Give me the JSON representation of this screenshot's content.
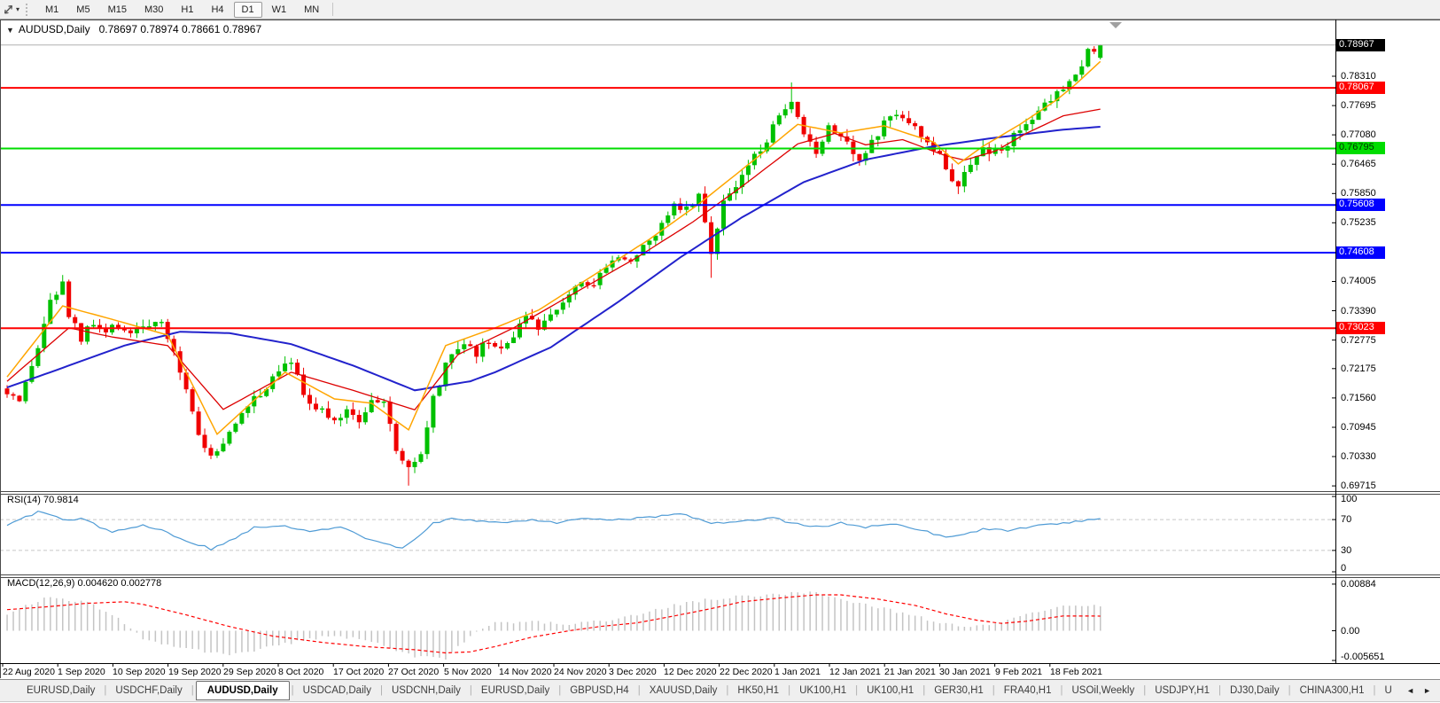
{
  "toolbar": {
    "timeframes": [
      "M1",
      "M5",
      "M15",
      "M30",
      "H1",
      "H4",
      "D1",
      "W1",
      "MN"
    ],
    "active_timeframe": "D1",
    "cursor_icon": "crosshair-cursor",
    "dropdown_arrow": "▾"
  },
  "window": {
    "title_collapse_arrow": "▼",
    "title_symbol": "AUDUSD,Daily",
    "title_ohlc": "0.78697 0.78974 0.78661 0.78967"
  },
  "chart_data": {
    "type": "candlestick",
    "symbol": "AUDUSD",
    "timeframe": "Daily",
    "last_ohlc": {
      "open": 0.78697,
      "high": 0.78974,
      "low": 0.78661,
      "close": 0.78967
    },
    "candle_count": 178,
    "grid": "off",
    "colors": {
      "bull": "#00c000",
      "bear": "#f00000",
      "ma_fast": "#ffa500",
      "ma_mid": "#dd0000",
      "ma_slow": "#2222cc",
      "rsi_line": "#4f9bd5",
      "rsi_grid": "#c8c8c8",
      "macd_hist": "#c4c4c4",
      "macd_signal": "#ff0000",
      "current_price_line": "#b0b0b0",
      "axis": "#000000"
    },
    "y_axis_labels": [
      {
        "text": "0.78310",
        "value": 0.7831
      },
      {
        "text": "0.77695",
        "value": 0.77695
      },
      {
        "text": "0.77080",
        "value": 0.7708
      },
      {
        "text": "0.76465",
        "value": 0.76465
      },
      {
        "text": "0.75850",
        "value": 0.7585
      },
      {
        "text": "0.75235",
        "value": 0.75235
      },
      {
        "text": "0.74005",
        "value": 0.74005
      },
      {
        "text": "0.73390",
        "value": 0.7339
      },
      {
        "text": "0.72775",
        "value": 0.72775
      },
      {
        "text": "0.72175",
        "value": 0.72175
      },
      {
        "text": "0.71560",
        "value": 0.7156
      },
      {
        "text": "0.70945",
        "value": 0.70945
      },
      {
        "text": "0.70330",
        "value": 0.7033
      },
      {
        "text": "0.69715",
        "value": 0.69715
      }
    ],
    "price_badges": [
      {
        "text": "0.78967",
        "value": 0.78967,
        "bg": "#000000",
        "fg": "#ffffff"
      },
      {
        "text": "0.78067",
        "value": 0.78067,
        "bg": "#ff0000",
        "fg": "#ffffff"
      },
      {
        "text": "0.76795",
        "value": 0.76795,
        "bg": "#00dd00",
        "fg": "#003300"
      },
      {
        "text": "0.75608",
        "value": 0.75608,
        "bg": "#0000ff",
        "fg": "#ffffff"
      },
      {
        "text": "0.74608",
        "value": 0.74608,
        "bg": "#0000ff",
        "fg": "#ffffff"
      },
      {
        "text": "0.73023",
        "value": 0.73023,
        "bg": "#ff0000",
        "fg": "#ffffff"
      }
    ],
    "h_lines": [
      {
        "value": 0.78067,
        "color": "#ff0000",
        "width": 2
      },
      {
        "value": 0.76795,
        "color": "#00dd00",
        "width": 2
      },
      {
        "value": 0.75608,
        "color": "#0000ff",
        "width": 2
      },
      {
        "value": 0.74608,
        "color": "#0000ff",
        "width": 2
      },
      {
        "value": 0.73023,
        "color": "#ff0000",
        "width": 2
      }
    ],
    "current_price": {
      "text": "0.78967",
      "value": 0.78967
    },
    "x_axis_labels": [
      "22 Aug 2020",
      "1 Sep 2020",
      "10 Sep 2020",
      "19 Sep 2020",
      "29 Sep 2020",
      "8 Oct 2020",
      "17 Oct 2020",
      "27 Oct 2020",
      "5 Nov 2020",
      "14 Nov 2020",
      "24 Nov 2020",
      "3 Dec 2020",
      "12 Dec 2020",
      "22 Dec 2020",
      "1 Jan 2021",
      "12 Jan 2021",
      "21 Jan 2021",
      "30 Jan 2021",
      "9 Feb 2021",
      "18 Feb 2021"
    ],
    "close_waypoints": [
      [
        0,
        0.716
      ],
      [
        2,
        0.714
      ],
      [
        5,
        0.726
      ],
      [
        7,
        0.736
      ],
      [
        9,
        0.7392
      ],
      [
        10,
        0.733
      ],
      [
        12,
        0.728
      ],
      [
        14,
        0.731
      ],
      [
        16,
        0.729
      ],
      [
        18,
        0.731
      ],
      [
        20,
        0.7295
      ],
      [
        23,
        0.7312
      ],
      [
        25,
        0.7305
      ],
      [
        27,
        0.725
      ],
      [
        29,
        0.718
      ],
      [
        31,
        0.708
      ],
      [
        33,
        0.703
      ],
      [
        35,
        0.7062
      ],
      [
        38,
        0.712
      ],
      [
        40,
        0.716
      ],
      [
        42,
        0.718
      ],
      [
        44,
        0.7222
      ],
      [
        46,
        0.724
      ],
      [
        48,
        0.716
      ],
      [
        51,
        0.713
      ],
      [
        53,
        0.71
      ],
      [
        55,
        0.7136
      ],
      [
        57,
        0.7112
      ],
      [
        59,
        0.7156
      ],
      [
        61,
        0.714
      ],
      [
        63,
        0.705
      ],
      [
        65,
        0.7005
      ],
      [
        67,
        0.7032
      ],
      [
        69,
        0.715
      ],
      [
        71,
        0.722
      ],
      [
        73,
        0.7262
      ],
      [
        76,
        0.725
      ],
      [
        78,
        0.7272
      ],
      [
        80,
        0.7256
      ],
      [
        82,
        0.729
      ],
      [
        84,
        0.732
      ],
      [
        86,
        0.7302
      ],
      [
        88,
        0.734
      ],
      [
        91,
        0.7375
      ],
      [
        93,
        0.741
      ],
      [
        95,
        0.739
      ],
      [
        97,
        0.744
      ],
      [
        99,
        0.746
      ],
      [
        101,
        0.7442
      ],
      [
        104,
        0.748
      ],
      [
        106,
        0.752
      ],
      [
        108,
        0.757
      ],
      [
        110,
        0.7552
      ],
      [
        112,
        0.758
      ],
      [
        114,
        0.7462
      ],
      [
        115,
        0.752
      ],
      [
        116,
        0.757
      ],
      [
        118,
        0.76
      ],
      [
        121,
        0.766
      ],
      [
        123,
        0.77
      ],
      [
        125,
        0.774
      ],
      [
        127,
        0.7772
      ],
      [
        129,
        0.77
      ],
      [
        131,
        0.7672
      ],
      [
        133,
        0.773
      ],
      [
        136,
        0.77
      ],
      [
        138,
        0.7652
      ],
      [
        140,
        0.769
      ],
      [
        142,
        0.773
      ],
      [
        144,
        0.776
      ],
      [
        146,
        0.774
      ],
      [
        148,
        0.77
      ],
      [
        151,
        0.766
      ],
      [
        153,
        0.762
      ],
      [
        154,
        0.76
      ],
      [
        156,
        0.764
      ],
      [
        158,
        0.768
      ],
      [
        161,
        0.7672
      ],
      [
        163,
        0.771
      ],
      [
        165,
        0.773
      ],
      [
        167,
        0.776
      ],
      [
        169,
        0.7782
      ],
      [
        171,
        0.7812
      ],
      [
        173,
        0.7842
      ],
      [
        175,
        0.7882
      ],
      [
        177,
        0.78967
      ]
    ],
    "spikes": {
      "9": {
        "high": 0.7414
      },
      "65": {
        "low": 0.6972
      },
      "114": {
        "low": 0.7408
      },
      "127": {
        "high": 0.7818
      }
    },
    "ma_fast_waypoints": [
      [
        0,
        0.72
      ],
      [
        9,
        0.7349
      ],
      [
        17,
        0.7321
      ],
      [
        26,
        0.7288
      ],
      [
        34,
        0.708
      ],
      [
        45,
        0.721
      ],
      [
        53,
        0.7154
      ],
      [
        59,
        0.7145
      ],
      [
        65,
        0.7089
      ],
      [
        71,
        0.7266
      ],
      [
        79,
        0.7303
      ],
      [
        86,
        0.734
      ],
      [
        95,
        0.7414
      ],
      [
        104,
        0.7489
      ],
      [
        112,
        0.7563
      ],
      [
        121,
        0.7656
      ],
      [
        128,
        0.773
      ],
      [
        135,
        0.7712
      ],
      [
        142,
        0.7727
      ],
      [
        150,
        0.7693
      ],
      [
        154,
        0.7647
      ],
      [
        158,
        0.7684
      ],
      [
        164,
        0.773
      ],
      [
        170,
        0.7782
      ],
      [
        173,
        0.7814
      ],
      [
        177,
        0.7862
      ]
    ],
    "ma_mid_waypoints": [
      [
        0,
        0.7191
      ],
      [
        10,
        0.7303
      ],
      [
        17,
        0.7284
      ],
      [
        26,
        0.7266
      ],
      [
        35,
        0.7132
      ],
      [
        46,
        0.721
      ],
      [
        56,
        0.7172
      ],
      [
        66,
        0.7131
      ],
      [
        73,
        0.7247
      ],
      [
        82,
        0.7303
      ],
      [
        92,
        0.7377
      ],
      [
        102,
        0.7451
      ],
      [
        111,
        0.7525
      ],
      [
        119,
        0.76
      ],
      [
        128,
        0.7689
      ],
      [
        134,
        0.7711
      ],
      [
        139,
        0.7687
      ],
      [
        145,
        0.7698
      ],
      [
        152,
        0.7664
      ],
      [
        155,
        0.7655
      ],
      [
        160,
        0.7674
      ],
      [
        165,
        0.7711
      ],
      [
        171,
        0.7748
      ],
      [
        177,
        0.7762
      ]
    ],
    "ma_slow_waypoints": [
      [
        0,
        0.7178
      ],
      [
        7,
        0.721
      ],
      [
        19,
        0.7266
      ],
      [
        28,
        0.7295
      ],
      [
        36,
        0.7292
      ],
      [
        46,
        0.7269
      ],
      [
        56,
        0.7224
      ],
      [
        66,
        0.7172
      ],
      [
        75,
        0.7191
      ],
      [
        79,
        0.721
      ],
      [
        88,
        0.7262
      ],
      [
        99,
        0.7358
      ],
      [
        109,
        0.7451
      ],
      [
        119,
        0.7535
      ],
      [
        129,
        0.7609
      ],
      [
        139,
        0.7656
      ],
      [
        150,
        0.7684
      ],
      [
        160,
        0.7702
      ],
      [
        171,
        0.7719
      ],
      [
        177,
        0.7725
      ]
    ],
    "rsi": {
      "label": "RSI(14) 70.9814",
      "period": 14,
      "value": 70.9814,
      "scale_labels": [
        {
          "text": "100",
          "value": 100
        },
        {
          "text": "70",
          "value": 70
        },
        {
          "text": "30",
          "value": 30
        },
        {
          "text": "0",
          "value": 0
        }
      ],
      "dashed_levels": [
        70,
        30
      ],
      "waypoints": [
        [
          0,
          62
        ],
        [
          5,
          80
        ],
        [
          10,
          68
        ],
        [
          12,
          71
        ],
        [
          17,
          54
        ],
        [
          22,
          62
        ],
        [
          25,
          56
        ],
        [
          30,
          40
        ],
        [
          33,
          32
        ],
        [
          37,
          46
        ],
        [
          40,
          60
        ],
        [
          45,
          62
        ],
        [
          49,
          55
        ],
        [
          54,
          60
        ],
        [
          58,
          46
        ],
        [
          62,
          38
        ],
        [
          64,
          33
        ],
        [
          66,
          45
        ],
        [
          69,
          65
        ],
        [
          72,
          72
        ],
        [
          76,
          68
        ],
        [
          81,
          66
        ],
        [
          85,
          70
        ],
        [
          89,
          66
        ],
        [
          94,
          72
        ],
        [
          99,
          70
        ],
        [
          105,
          74
        ],
        [
          109,
          78
        ],
        [
          114,
          64
        ],
        [
          118,
          68
        ],
        [
          124,
          72
        ],
        [
          128,
          64
        ],
        [
          132,
          60
        ],
        [
          135,
          66
        ],
        [
          139,
          60
        ],
        [
          144,
          65
        ],
        [
          148,
          56
        ],
        [
          152,
          48
        ],
        [
          155,
          50
        ],
        [
          158,
          58
        ],
        [
          162,
          56
        ],
        [
          167,
          62
        ],
        [
          171,
          66
        ],
        [
          177,
          70.98
        ]
      ]
    },
    "macd": {
      "label": "MACD(12,26,9) 0.004620 0.002778",
      "params": [
        12,
        26,
        9
      ],
      "values": [
        0.00462,
        0.002778
      ],
      "scale_labels": [
        {
          "text": "0.00884",
          "value": 0.00884
        },
        {
          "text": "0.00",
          "value": 0
        },
        {
          "text": "-0.005651",
          "value": -0.005651
        }
      ],
      "waypoints": [
        [
          0,
          0.003,
          0.004
        ],
        [
          6,
          0.0062,
          0.0045
        ],
        [
          13,
          0.0055,
          0.0052
        ],
        [
          19,
          0.0015,
          0.0055
        ],
        [
          22,
          -0.0015,
          0.005
        ],
        [
          29,
          -0.0035,
          0.003
        ],
        [
          36,
          -0.0045,
          0.0008
        ],
        [
          43,
          -0.003,
          -0.001
        ],
        [
          51,
          -0.0012,
          -0.0022
        ],
        [
          58,
          -0.0015,
          -0.003
        ],
        [
          66,
          -0.005,
          -0.0036
        ],
        [
          71,
          -0.0053,
          -0.0042
        ],
        [
          75,
          -0.001,
          -0.004
        ],
        [
          79,
          0.0015,
          -0.003
        ],
        [
          85,
          0.0018,
          -0.0012
        ],
        [
          91,
          0.0012,
          0.0
        ],
        [
          96,
          0.0018,
          0.0008
        ],
        [
          102,
          0.003,
          0.0015
        ],
        [
          108,
          0.0048,
          0.0028
        ],
        [
          114,
          0.006,
          0.0042
        ],
        [
          119,
          0.0065,
          0.0055
        ],
        [
          125,
          0.007,
          0.0062
        ],
        [
          131,
          0.0073,
          0.0068
        ],
        [
          135,
          0.006,
          0.0068
        ],
        [
          141,
          0.0045,
          0.006
        ],
        [
          147,
          0.0028,
          0.0048
        ],
        [
          152,
          0.0012,
          0.0032
        ],
        [
          157,
          0.0008,
          0.002
        ],
        [
          161,
          0.0015,
          0.0014
        ],
        [
          165,
          0.003,
          0.0018
        ],
        [
          171,
          0.0046,
          0.0028
        ],
        [
          177,
          0.00462,
          0.002778
        ]
      ]
    }
  },
  "tabs": {
    "items": [
      "EURUSD,Daily",
      "USDCHF,Daily",
      "AUDUSD,Daily",
      "USDCAD,Daily",
      "USDCNH,Daily",
      "EURUSD,Daily",
      "GBPUSD,H4",
      "XAUUSD,Daily",
      "HK50,H1",
      "UK100,H1",
      "UK100,H1",
      "GER30,H1",
      "FRA40,H1",
      "USOil,Weekly",
      "USDJPY,H1",
      "DJ30,Daily",
      "CHINA300,H1",
      "U"
    ],
    "active_index": 2,
    "scroll_left": "◄",
    "scroll_right": "►"
  }
}
